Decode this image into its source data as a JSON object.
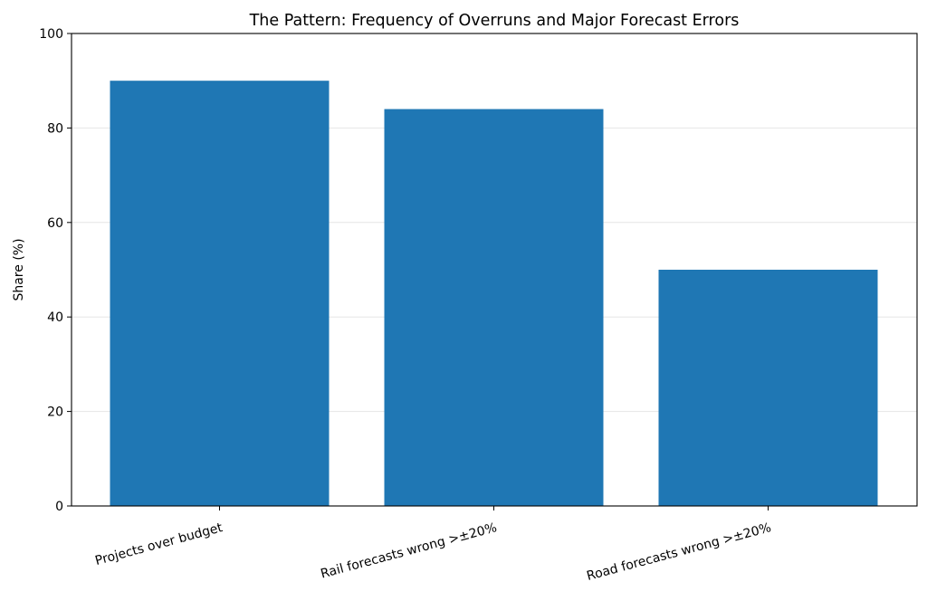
{
  "chart_data": {
    "type": "bar",
    "title": "The Pattern: Frequency of Overruns and Major Forecast Errors",
    "xlabel": "",
    "ylabel": "Share (%)",
    "categories": [
      "Projects over budget",
      "Rail forecasts wrong >±20%",
      "Road forecasts wrong >±20%"
    ],
    "values": [
      90,
      84,
      50
    ],
    "ylim": [
      0,
      100
    ],
    "yticks": [
      0,
      20,
      40,
      60,
      80,
      100
    ],
    "grid": "horizontal",
    "bar_color": "#1f77b4",
    "xtick_rotation_deg": 15
  }
}
